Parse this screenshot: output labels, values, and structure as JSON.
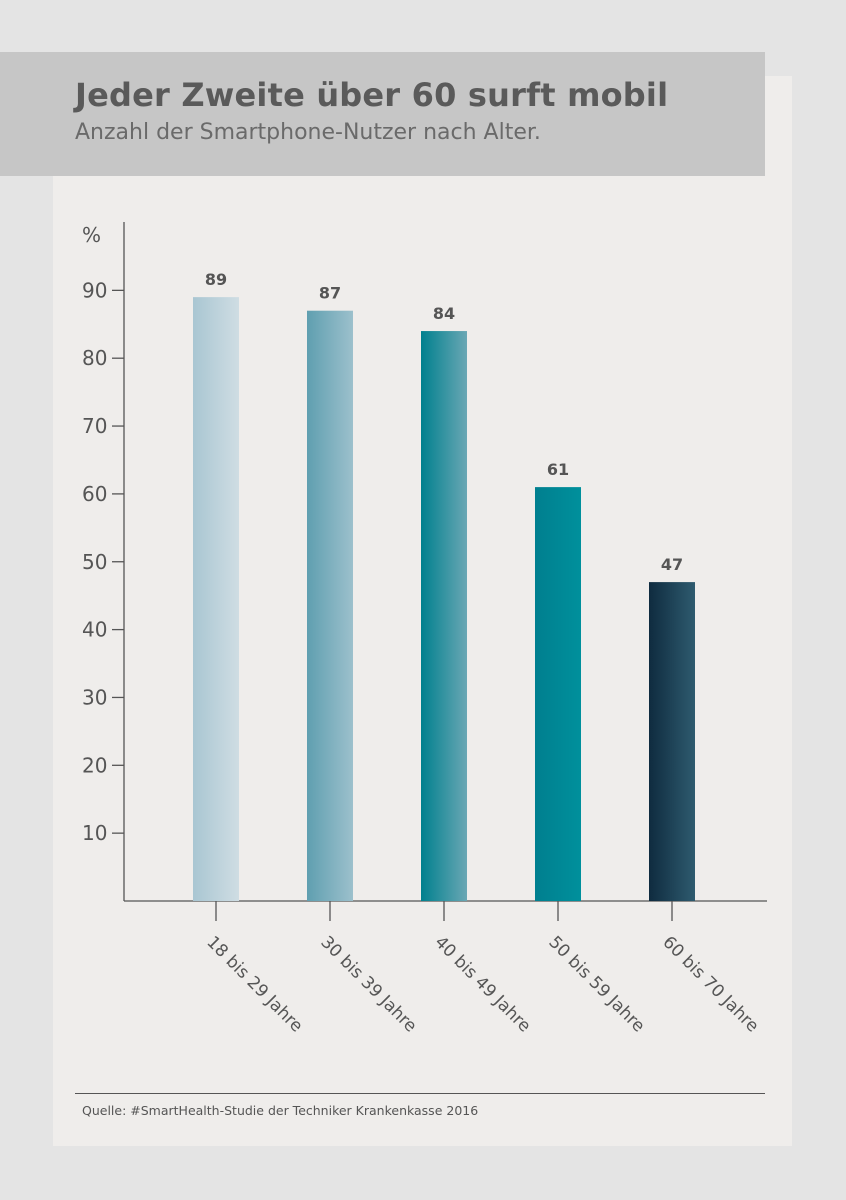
{
  "header": {
    "title": "Jeder Zweite über 60 surft mobil",
    "subtitle": "Anzahl der Smartphone-Nutzer nach Alter."
  },
  "chart_data": {
    "type": "bar",
    "categories": [
      "18 bis 29 Jahre",
      "30 bis 39 Jahre",
      "40 bis 49 Jahre",
      "50 bis 59 Jahre",
      "60 bis 70 Jahre"
    ],
    "values": [
      89,
      87,
      84,
      61,
      47
    ],
    "ylabel": "%",
    "yticks": [
      10,
      20,
      30,
      40,
      50,
      60,
      70,
      80,
      90
    ],
    "ylim": [
      0,
      100
    ],
    "grid": false,
    "bar_colors": [
      [
        "#a9c6d2",
        "#cfdde3"
      ],
      [
        "#5f9fb0",
        "#9cc0cc"
      ],
      [
        "#00808e",
        "#6aa7b4"
      ],
      [
        "#007f8f",
        "#00909c"
      ],
      [
        "#0f2b3f",
        "#2e5b6f"
      ]
    ]
  },
  "footer": {
    "source": "Quelle: #SmartHealth-Studie der Techniker Krankenkasse 2016"
  }
}
